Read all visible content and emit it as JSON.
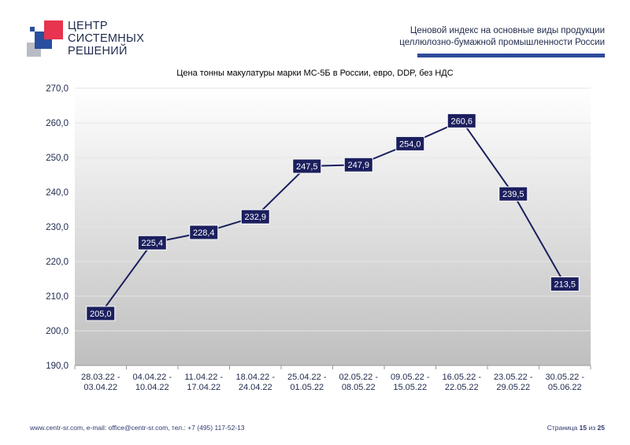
{
  "logo": {
    "lines": [
      "ЦЕНТР",
      "СИСТЕМНЫХ",
      "РЕШЕНИЙ"
    ],
    "colors": {
      "red": "#e8344e",
      "blue": "#2a4f9e",
      "gray": "#b9bcc4"
    }
  },
  "header": {
    "line1": "Ценовой индекс на основные виды продукции",
    "line2": "целлюлозно-бумажной промышленности России"
  },
  "chart_data": {
    "type": "line",
    "title": "Цена тонны макулатуры марки МС-5Б в России, евро, DDP, без НДС",
    "categories": [
      "28.03.22 - 03.04.22",
      "04.04.22 - 10.04.22",
      "11.04.22 - 17.04.22",
      "18.04.22 - 24.04.22",
      "25.04.22 - 01.05.22",
      "02.05.22 - 08.05.22",
      "09.05.22 - 15.05.22",
      "16.05.22 - 22.05.22",
      "23.05.22 - 29.05.22",
      "30.05.22 - 05.06.22"
    ],
    "values": [
      205.0,
      225.4,
      228.4,
      232.9,
      247.5,
      247.9,
      254.0,
      260.6,
      239.5,
      213.5
    ],
    "value_labels": [
      "205,0",
      "225,4",
      "228,4",
      "232,9",
      "247,5",
      "247,9",
      "254,0",
      "260,6",
      "239,5",
      "213,5"
    ],
    "y_ticks": [
      "190,0",
      "200,0",
      "210,0",
      "220,0",
      "230,0",
      "240,0",
      "250,0",
      "260,0",
      "270,0"
    ],
    "ylim": [
      190,
      270
    ],
    "grid": true,
    "line_color": "#1b1f5e",
    "label_bg": "#1b1f5e"
  },
  "footer": {
    "contacts": "www.centr-sr.com, e-mail: office@centr-sr.com, тел.: +7 (495) 117-52-13",
    "page_prefix": "Страница",
    "page_current": "15",
    "page_sep": "из",
    "page_total": "25"
  }
}
